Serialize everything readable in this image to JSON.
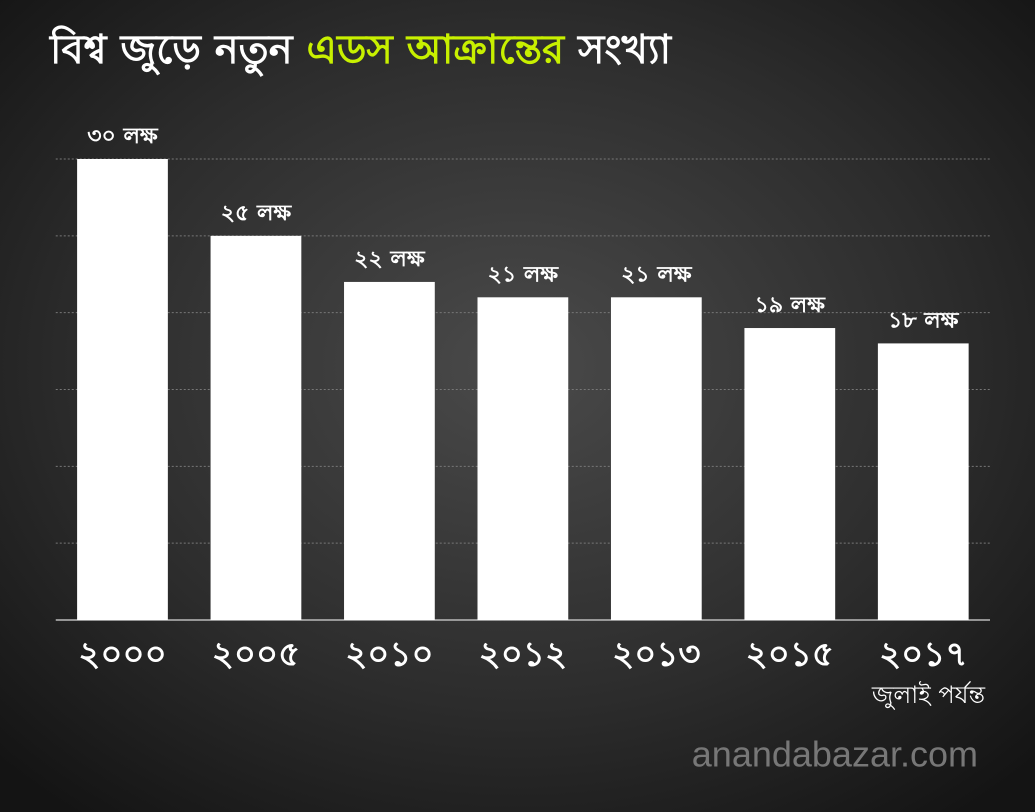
{
  "chart_data": {
    "type": "bar",
    "title_parts": [
      {
        "text": "বিশ্ব জুড়ে নতুন",
        "color": "#ffffff"
      },
      {
        "text": "এডস আক্রান্তের",
        "color": "#c8f000"
      },
      {
        "text": "সংখ্যা",
        "color": "#ffffff"
      }
    ],
    "categories": [
      "২০০০",
      "২০০৫",
      "২০১০",
      "২০১২",
      "২০১৩",
      "২০১৫",
      "২০১৭"
    ],
    "values": [
      30,
      25,
      22,
      21,
      21,
      19,
      18
    ],
    "value_labels": [
      "৩০ লক্ষ",
      "২৫ লক্ষ",
      "২২ লক্ষ",
      "২১ লক্ষ",
      "২১ লক্ষ",
      "১৯ লক্ষ",
      "১৮ লক্ষ"
    ],
    "color": "#ffffff",
    "ylim": [
      0,
      30
    ],
    "yticks": [
      0,
      5,
      10,
      15,
      20,
      25,
      30
    ],
    "grid": true,
    "annotation": "জুলাই পর্যন্ত",
    "watermark": "anandabazar.com"
  }
}
